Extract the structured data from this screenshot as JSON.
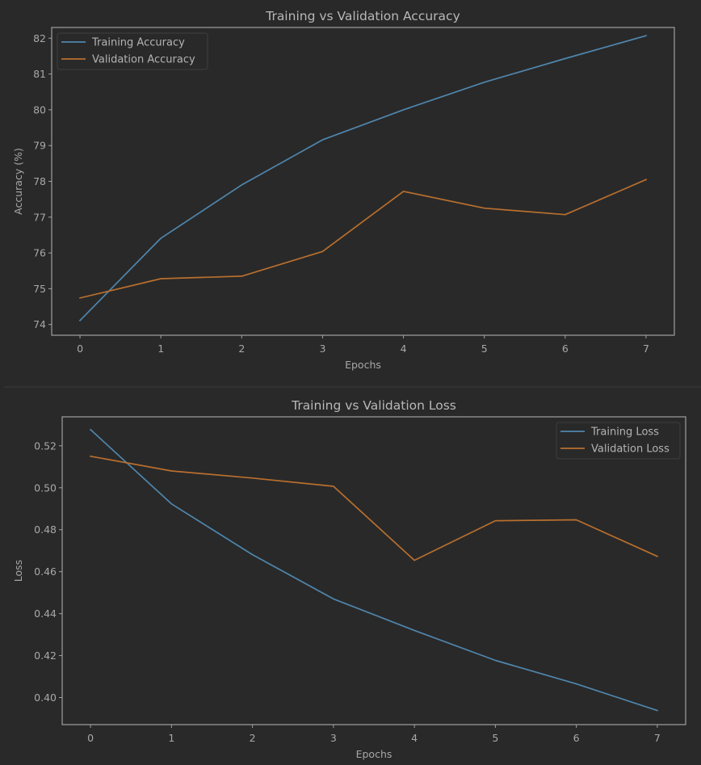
{
  "colors": {
    "background": "#292929",
    "training": "#4f86ad",
    "validation": "#b86f2e"
  },
  "chart_data": [
    {
      "type": "line",
      "title": "Training vs Validation Accuracy",
      "xlabel": "Epochs",
      "ylabel": "Accuracy (%)",
      "x": [
        0,
        1,
        2,
        3,
        4,
        5,
        6,
        7
      ],
      "xlim": [
        -0.35,
        7.35
      ],
      "ylim": [
        73.7,
        82.3
      ],
      "xticks": [
        "0",
        "1",
        "2",
        "3",
        "4",
        "5",
        "6",
        "7"
      ],
      "yticks": [
        "74",
        "75",
        "76",
        "77",
        "78",
        "79",
        "80",
        "81",
        "82"
      ],
      "ytick_values": [
        74,
        75,
        76,
        77,
        78,
        79,
        80,
        81,
        82
      ],
      "grid": false,
      "legend_position": "upper-left",
      "series": [
        {
          "name": "Training Accuracy",
          "color": "#4f86ad",
          "values": [
            74.11,
            76.41,
            77.9,
            79.16,
            80.0,
            80.77,
            81.43,
            82.07
          ]
        },
        {
          "name": "Validation Accuracy",
          "color": "#b86f2e",
          "values": [
            74.74,
            75.28,
            75.35,
            76.04,
            77.72,
            77.25,
            77.07,
            78.05
          ]
        }
      ]
    },
    {
      "type": "line",
      "title": "Training vs Validation Loss",
      "xlabel": "Epochs",
      "ylabel": "Loss",
      "x": [
        0,
        1,
        2,
        3,
        4,
        5,
        6,
        7
      ],
      "xlim": [
        -0.35,
        7.35
      ],
      "ylim": [
        0.3871,
        0.5338
      ],
      "xticks": [
        "0",
        "1",
        "2",
        "3",
        "4",
        "5",
        "6",
        "7"
      ],
      "yticks": [
        "0.40",
        "0.42",
        "0.44",
        "0.46",
        "0.48",
        "0.50",
        "0.52"
      ],
      "ytick_values": [
        0.4,
        0.42,
        0.44,
        0.46,
        0.48,
        0.5,
        0.52
      ],
      "grid": false,
      "legend_position": "upper-right",
      "series": [
        {
          "name": "Training Loss",
          "color": "#4f86ad",
          "values": [
            0.5277,
            0.4923,
            0.4681,
            0.447,
            0.432,
            0.4177,
            0.4065,
            0.3938
          ]
        },
        {
          "name": "Validation Loss",
          "color": "#b86f2e",
          "values": [
            0.515,
            0.508,
            0.5046,
            0.5007,
            0.4654,
            0.4843,
            0.4847,
            0.4673
          ]
        }
      ]
    }
  ]
}
